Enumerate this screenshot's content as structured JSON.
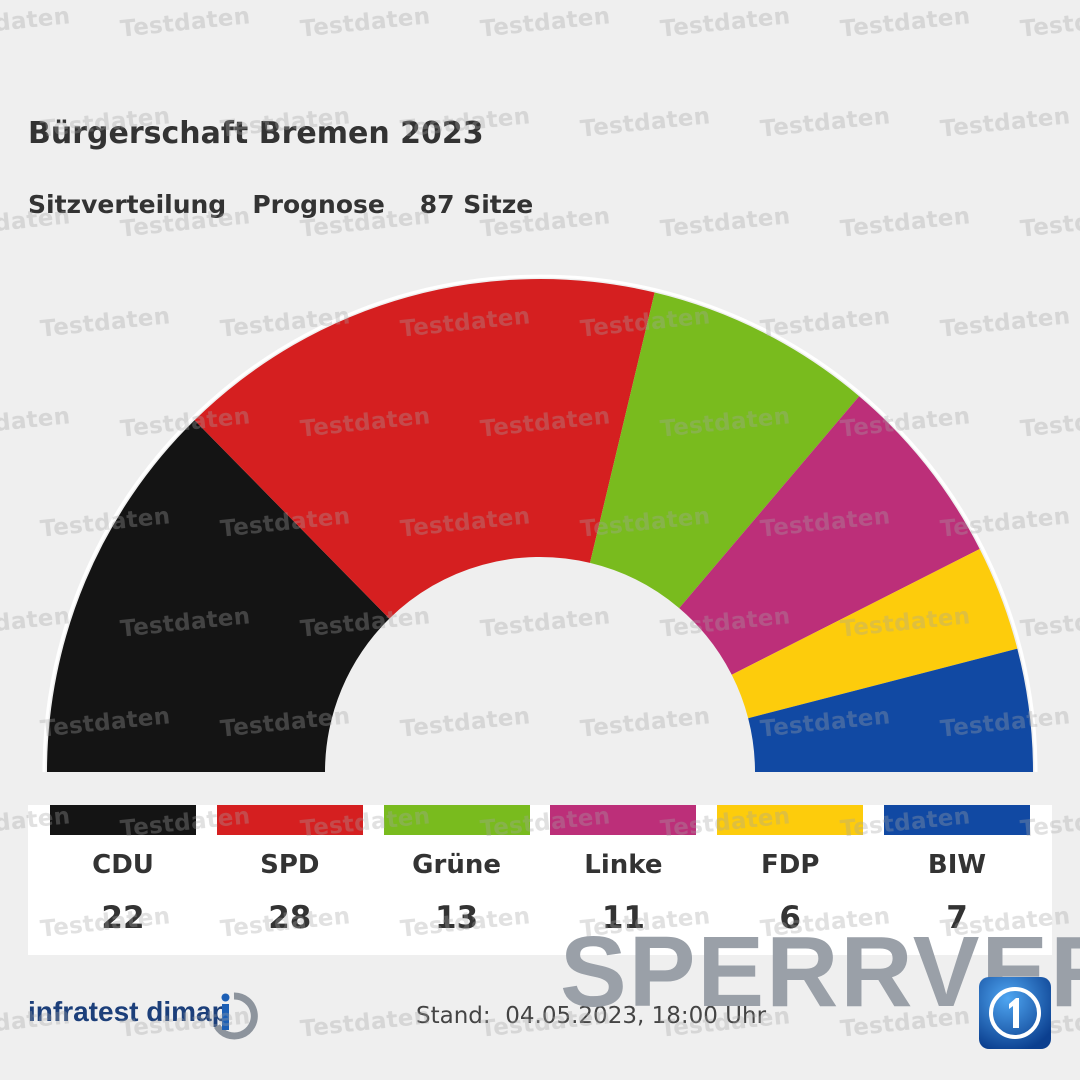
{
  "header": {
    "title": "Bürgerschaft Bremen 2023",
    "subtitle_distribution": "Sitzverteilung",
    "subtitle_forecast": "Prognose",
    "subtitle_seats": "87 Sitze"
  },
  "chart_data": {
    "type": "parliament-semicircle",
    "title": "Bürgerschaft Bremen 2023",
    "subtitle": "Sitzverteilung   Prognose    87 Sitze",
    "total": 87,
    "categories": [
      "CDU",
      "SPD",
      "Grüne",
      "Linke",
      "FDP",
      "BIW"
    ],
    "values": [
      22,
      28,
      13,
      11,
      6,
      7
    ],
    "colors": [
      "#141414",
      "#d51f20",
      "#79bb1e",
      "#bc2f79",
      "#fdcc0c",
      "#1149a3"
    ]
  },
  "footer": {
    "source": "infratest dimap",
    "stand_label": "Stand:",
    "stand_value": "04.05.2023, 18:00 Uhr",
    "stamp": "SPERRVER"
  },
  "watermark": {
    "text": "Testdaten"
  },
  "icons": [
    "infratest-dimap-logo-icon",
    "das-erste-logo-icon"
  ]
}
